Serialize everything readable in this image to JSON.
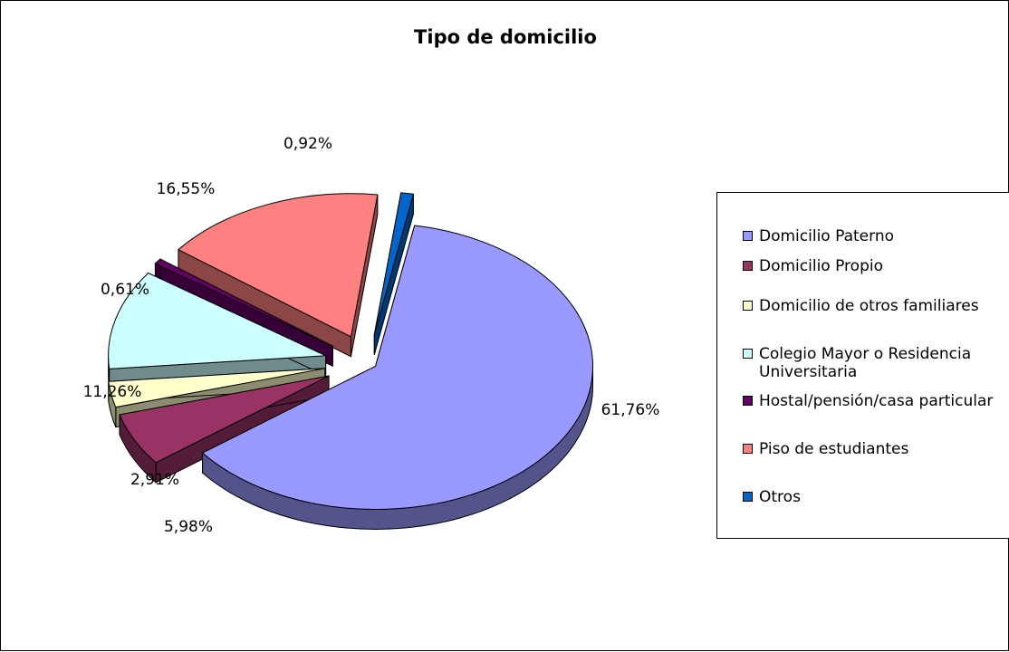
{
  "chart_data": {
    "type": "pie",
    "title": "Tipo de domicilio",
    "categories": [
      "Domicilio Paterno",
      "Domicilio Propio",
      "Domicilio de otros familiares",
      "Colegio Mayor o Residencia Universitaria",
      "Hostal/pensión/casa particular",
      "Piso de estudiantes",
      "Otros"
    ],
    "values": [
      61.76,
      5.98,
      2.91,
      11.26,
      0.61,
      16.55,
      0.92
    ],
    "value_labels": [
      "61,76%",
      "5,98%",
      "2,91%",
      "11,26%",
      "0,61%",
      "16,55%",
      "0,92%"
    ],
    "colors": [
      "#9999ff",
      "#993366",
      "#ffffcc",
      "#ccffff",
      "#660066",
      "#ff8080",
      "#0066cc"
    ],
    "legend_position": "right",
    "exploded": true,
    "three_d": true
  },
  "legend": {
    "items": [
      {
        "label": "Domicilio Paterno",
        "color": "#9999ff"
      },
      {
        "label": "Domicilio Propio",
        "color": "#993366"
      },
      {
        "label": "Domicilio de otros familiares",
        "color": "#ffffcc"
      },
      {
        "label": "Colegio Mayor o Residencia Universitaria",
        "color": "#ccffff"
      },
      {
        "label": "Hostal/pensión/casa particular",
        "color": "#660066"
      },
      {
        "label": "Piso de estudiantes",
        "color": "#ff8080"
      },
      {
        "label": "Otros",
        "color": "#0066cc"
      }
    ]
  }
}
